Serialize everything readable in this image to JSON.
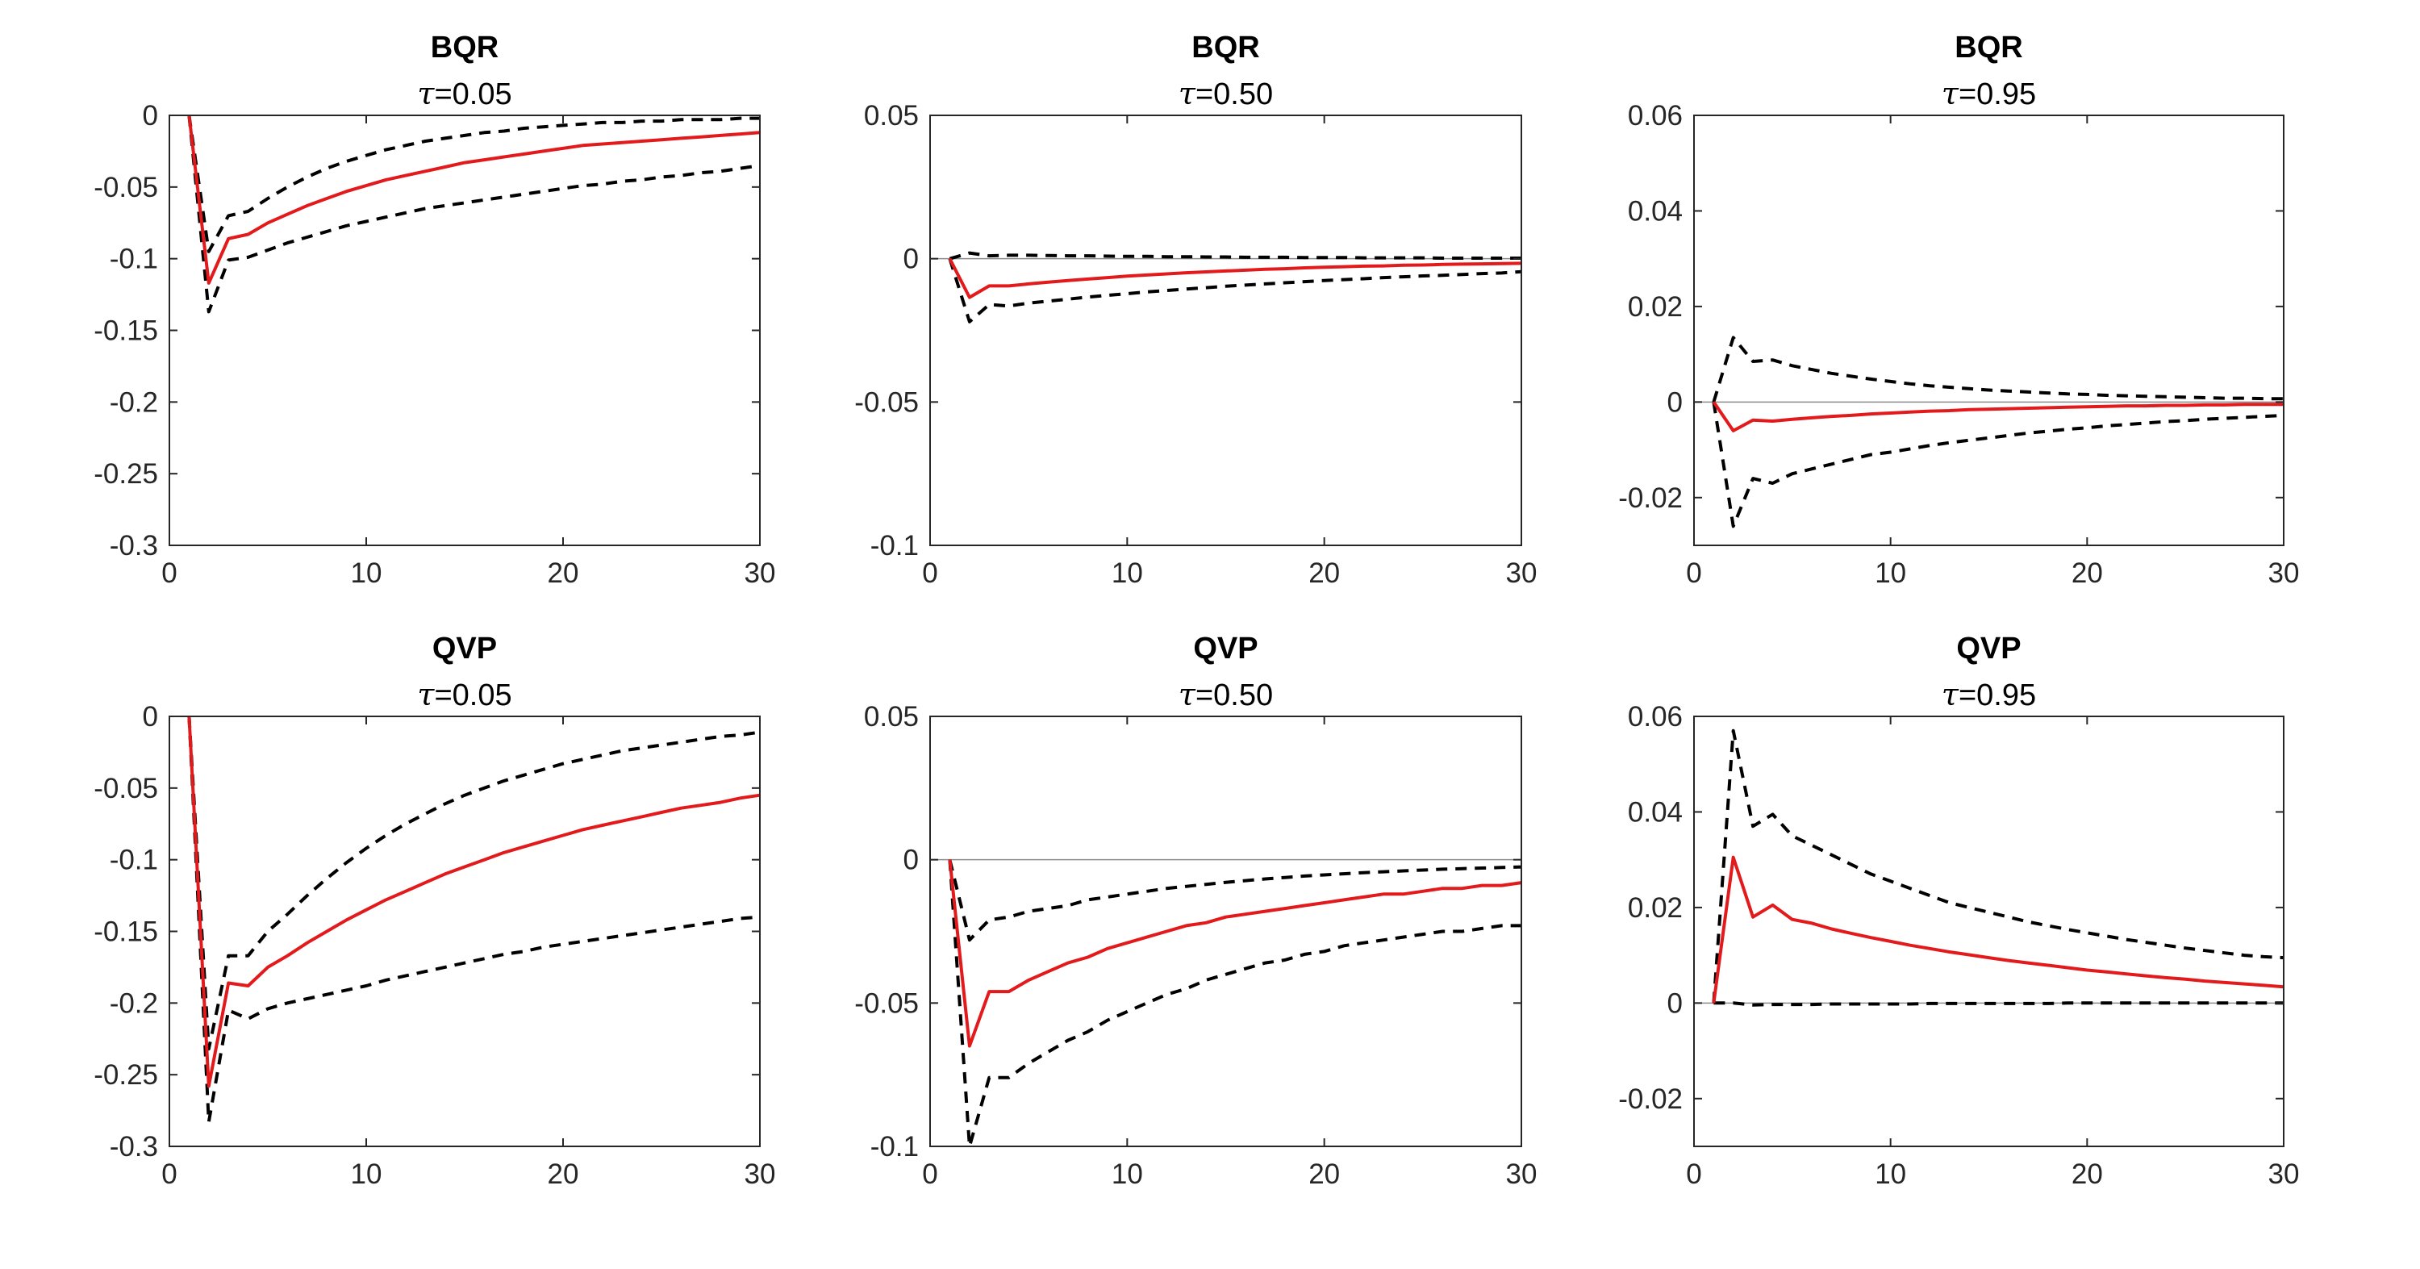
{
  "chart_data": [
    {
      "type": "line",
      "title": "BQR",
      "subtitle_prefix": "τ",
      "subtitle_value": "=0.05",
      "xlim": [
        0,
        30
      ],
      "ylim": [
        -0.3,
        0
      ],
      "xticks": [
        0,
        10,
        20,
        30
      ],
      "yticks": [
        -0.3,
        -0.25,
        -0.2,
        -0.15,
        -0.1,
        -0.05,
        0
      ],
      "ytick_labels": [
        "-0.3",
        "-0.25",
        "-0.2",
        "-0.15",
        "-0.1",
        "-0.05",
        "0"
      ],
      "zero_line": false,
      "x": [
        1,
        2,
        3,
        4,
        5,
        6,
        7,
        8,
        9,
        10,
        11,
        12,
        13,
        14,
        15,
        16,
        17,
        18,
        19,
        20,
        21,
        22,
        23,
        24,
        25,
        26,
        27,
        28,
        29,
        30
      ],
      "series": [
        {
          "role": "median",
          "values": [
            0,
            -0.117,
            -0.086,
            -0.083,
            -0.075,
            -0.069,
            -0.063,
            -0.058,
            -0.053,
            -0.049,
            -0.045,
            -0.042,
            -0.039,
            -0.036,
            -0.033,
            -0.031,
            -0.029,
            -0.027,
            -0.025,
            -0.023,
            -0.021,
            -0.02,
            -0.019,
            -0.018,
            -0.017,
            -0.016,
            -0.015,
            -0.014,
            -0.013,
            -0.012
          ]
        },
        {
          "role": "lower",
          "values": [
            0,
            -0.137,
            -0.101,
            -0.099,
            -0.094,
            -0.089,
            -0.085,
            -0.081,
            -0.077,
            -0.074,
            -0.071,
            -0.068,
            -0.065,
            -0.063,
            -0.061,
            -0.059,
            -0.057,
            -0.055,
            -0.053,
            -0.051,
            -0.049,
            -0.048,
            -0.046,
            -0.045,
            -0.043,
            -0.042,
            -0.04,
            -0.039,
            -0.037,
            -0.035
          ]
        },
        {
          "role": "upper",
          "values": [
            0,
            -0.095,
            -0.07,
            -0.067,
            -0.058,
            -0.05,
            -0.043,
            -0.037,
            -0.032,
            -0.028,
            -0.024,
            -0.021,
            -0.018,
            -0.016,
            -0.014,
            -0.012,
            -0.011,
            -0.009,
            -0.008,
            -0.007,
            -0.006,
            -0.005,
            -0.005,
            -0.004,
            -0.004,
            -0.003,
            -0.003,
            -0.003,
            -0.002,
            -0.002
          ]
        }
      ]
    },
    {
      "type": "line",
      "title": "BQR",
      "subtitle_prefix": "τ",
      "subtitle_value": "=0.50",
      "xlim": [
        0,
        30
      ],
      "ylim": [
        -0.1,
        0.05
      ],
      "xticks": [
        0,
        10,
        20,
        30
      ],
      "yticks": [
        -0.1,
        -0.05,
        0,
        0.05
      ],
      "ytick_labels": [
        "-0.1",
        "-0.05",
        "0",
        "0.05"
      ],
      "zero_line": true,
      "x": [
        1,
        2,
        3,
        4,
        5,
        6,
        7,
        8,
        9,
        10,
        11,
        12,
        13,
        14,
        15,
        16,
        17,
        18,
        19,
        20,
        21,
        22,
        23,
        24,
        25,
        26,
        27,
        28,
        29,
        30
      ],
      "series": [
        {
          "role": "median",
          "values": [
            0,
            -0.0135,
            -0.0095,
            -0.0095,
            -0.0088,
            -0.0082,
            -0.0076,
            -0.0071,
            -0.0066,
            -0.0061,
            -0.0057,
            -0.0053,
            -0.0049,
            -0.0046,
            -0.0043,
            -0.004,
            -0.0037,
            -0.0035,
            -0.0032,
            -0.003,
            -0.0028,
            -0.0026,
            -0.0025,
            -0.0023,
            -0.0022,
            -0.002,
            -0.0019,
            -0.0018,
            -0.0017,
            -0.0016
          ]
        },
        {
          "role": "lower",
          "values": [
            0,
            -0.022,
            -0.016,
            -0.0165,
            -0.0155,
            -0.0148,
            -0.0141,
            -0.0134,
            -0.0128,
            -0.0122,
            -0.0116,
            -0.0111,
            -0.0106,
            -0.0101,
            -0.0096,
            -0.0092,
            -0.0088,
            -0.0084,
            -0.008,
            -0.0076,
            -0.0073,
            -0.007,
            -0.0066,
            -0.0063,
            -0.006,
            -0.0058,
            -0.0055,
            -0.0052,
            -0.005,
            -0.0045
          ]
        },
        {
          "role": "upper",
          "values": [
            0,
            0.002,
            0.001,
            0.0012,
            0.0012,
            0.0011,
            0.001,
            0.001,
            0.0009,
            0.0008,
            0.0008,
            0.0007,
            0.0007,
            0.0006,
            0.0006,
            0.0005,
            0.0005,
            0.0005,
            0.0004,
            0.0004,
            0.0004,
            0.0003,
            0.0003,
            0.0003,
            0.0003,
            0.0002,
            0.0002,
            0.0002,
            0.0002,
            0.0002
          ]
        }
      ]
    },
    {
      "type": "line",
      "title": "BQR",
      "subtitle_prefix": "τ",
      "subtitle_value": "=0.95",
      "xlim": [
        0,
        30
      ],
      "ylim": [
        -0.03,
        0.06
      ],
      "xticks": [
        0,
        10,
        20,
        30
      ],
      "yticks": [
        -0.02,
        0,
        0.02,
        0.04,
        0.06
      ],
      "ytick_labels": [
        "-0.02",
        "0",
        "0.02",
        "0.04",
        "0.06"
      ],
      "zero_line": true,
      "x": [
        1,
        2,
        3,
        4,
        5,
        6,
        7,
        8,
        9,
        10,
        11,
        12,
        13,
        14,
        15,
        16,
        17,
        18,
        19,
        20,
        21,
        22,
        23,
        24,
        25,
        26,
        27,
        28,
        29,
        30
      ],
      "series": [
        {
          "role": "median",
          "values": [
            0,
            -0.006,
            -0.0038,
            -0.004,
            -0.0036,
            -0.0033,
            -0.003,
            -0.0028,
            -0.0025,
            -0.0023,
            -0.0021,
            -0.0019,
            -0.0018,
            -0.0016,
            -0.0015,
            -0.0014,
            -0.0013,
            -0.0012,
            -0.0011,
            -0.001,
            -0.0009,
            -0.0008,
            -0.0008,
            -0.0007,
            -0.0007,
            -0.0006,
            -0.0006,
            -0.0005,
            -0.0005,
            -0.0005
          ]
        },
        {
          "role": "lower",
          "values": [
            0,
            -0.026,
            -0.016,
            -0.017,
            -0.015,
            -0.014,
            -0.013,
            -0.012,
            -0.011,
            -0.0105,
            -0.0098,
            -0.0091,
            -0.0085,
            -0.008,
            -0.0075,
            -0.007,
            -0.0065,
            -0.0061,
            -0.0057,
            -0.0054,
            -0.005,
            -0.0047,
            -0.0044,
            -0.0041,
            -0.0039,
            -0.0036,
            -0.0034,
            -0.0032,
            -0.003,
            -0.0028
          ]
        },
        {
          "role": "upper",
          "values": [
            0,
            0.0135,
            0.0085,
            0.0088,
            0.0076,
            0.0068,
            0.006,
            0.0054,
            0.0048,
            0.0043,
            0.0038,
            0.0034,
            0.0031,
            0.0028,
            0.0025,
            0.0023,
            0.0021,
            0.0019,
            0.0017,
            0.0016,
            0.0014,
            0.0013,
            0.0012,
            0.0011,
            0.001,
            0.0009,
            0.0008,
            0.0008,
            0.0007,
            0.0007
          ]
        }
      ]
    },
    {
      "type": "line",
      "title": "QVP",
      "subtitle_prefix": "τ",
      "subtitle_value": "=0.05",
      "xlim": [
        0,
        30
      ],
      "ylim": [
        -0.3,
        0
      ],
      "xticks": [
        0,
        10,
        20,
        30
      ],
      "yticks": [
        -0.3,
        -0.25,
        -0.2,
        -0.15,
        -0.1,
        -0.05,
        0
      ],
      "ytick_labels": [
        "-0.3",
        "-0.25",
        "-0.2",
        "-0.15",
        "-0.1",
        "-0.05",
        "0"
      ],
      "zero_line": false,
      "x": [
        1,
        2,
        3,
        4,
        5,
        6,
        7,
        8,
        9,
        10,
        11,
        12,
        13,
        14,
        15,
        16,
        17,
        18,
        19,
        20,
        21,
        22,
        23,
        24,
        25,
        26,
        27,
        28,
        29,
        30
      ],
      "series": [
        {
          "role": "median",
          "values": [
            0,
            -0.258,
            -0.186,
            -0.188,
            -0.175,
            -0.167,
            -0.158,
            -0.15,
            -0.142,
            -0.135,
            -0.128,
            -0.122,
            -0.116,
            -0.11,
            -0.105,
            -0.1,
            -0.095,
            -0.091,
            -0.087,
            -0.083,
            -0.079,
            -0.076,
            -0.073,
            -0.07,
            -0.067,
            -0.064,
            -0.062,
            -0.06,
            -0.057,
            -0.055
          ]
        },
        {
          "role": "lower",
          "values": [
            0,
            -0.283,
            -0.205,
            -0.211,
            -0.204,
            -0.2,
            -0.197,
            -0.194,
            -0.191,
            -0.188,
            -0.184,
            -0.181,
            -0.178,
            -0.175,
            -0.172,
            -0.169,
            -0.166,
            -0.164,
            -0.161,
            -0.159,
            -0.157,
            -0.155,
            -0.153,
            -0.151,
            -0.149,
            -0.147,
            -0.145,
            -0.143,
            -0.141,
            -0.14
          ]
        },
        {
          "role": "upper",
          "values": [
            0,
            -0.232,
            -0.167,
            -0.167,
            -0.15,
            -0.138,
            -0.125,
            -0.113,
            -0.102,
            -0.092,
            -0.083,
            -0.075,
            -0.068,
            -0.061,
            -0.055,
            -0.05,
            -0.045,
            -0.041,
            -0.037,
            -0.033,
            -0.03,
            -0.027,
            -0.024,
            -0.022,
            -0.02,
            -0.018,
            -0.016,
            -0.014,
            -0.013,
            -0.011
          ]
        }
      ]
    },
    {
      "type": "line",
      "title": "QVP",
      "subtitle_prefix": "τ",
      "subtitle_value": "=0.50",
      "xlim": [
        0,
        30
      ],
      "ylim": [
        -0.1,
        0.05
      ],
      "xticks": [
        0,
        10,
        20,
        30
      ],
      "yticks": [
        -0.1,
        -0.05,
        0,
        0.05
      ],
      "ytick_labels": [
        "-0.1",
        "-0.05",
        "0",
        "0.05"
      ],
      "zero_line": true,
      "x": [
        1,
        2,
        3,
        4,
        5,
        6,
        7,
        8,
        9,
        10,
        11,
        12,
        13,
        14,
        15,
        16,
        17,
        18,
        19,
        20,
        21,
        22,
        23,
        24,
        25,
        26,
        27,
        28,
        29,
        30
      ],
      "series": [
        {
          "role": "median",
          "values": [
            0,
            -0.065,
            -0.046,
            -0.046,
            -0.042,
            -0.039,
            -0.036,
            -0.034,
            -0.031,
            -0.029,
            -0.027,
            -0.025,
            -0.023,
            -0.022,
            -0.02,
            -0.019,
            -0.018,
            -0.017,
            -0.016,
            -0.015,
            -0.014,
            -0.013,
            -0.012,
            -0.012,
            -0.011,
            -0.01,
            -0.01,
            -0.009,
            -0.009,
            -0.008
          ]
        },
        {
          "role": "lower",
          "values": [
            0,
            -0.1,
            -0.076,
            -0.076,
            -0.071,
            -0.067,
            -0.063,
            -0.06,
            -0.056,
            -0.053,
            -0.05,
            -0.047,
            -0.045,
            -0.042,
            -0.04,
            -0.038,
            -0.036,
            -0.035,
            -0.033,
            -0.032,
            -0.03,
            -0.029,
            -0.028,
            -0.027,
            -0.026,
            -0.025,
            -0.025,
            -0.024,
            -0.023,
            -0.023
          ]
        },
        {
          "role": "upper",
          "values": [
            0,
            -0.028,
            -0.021,
            -0.02,
            -0.018,
            -0.017,
            -0.016,
            -0.014,
            -0.013,
            -0.012,
            -0.011,
            -0.01,
            -0.0093,
            -0.0086,
            -0.0079,
            -0.0073,
            -0.0067,
            -0.0062,
            -0.0057,
            -0.0053,
            -0.0049,
            -0.0045,
            -0.0042,
            -0.0039,
            -0.0036,
            -0.0033,
            -0.0031,
            -0.0029,
            -0.0027,
            -0.0025
          ]
        }
      ]
    },
    {
      "type": "line",
      "title": "QVP",
      "subtitle_prefix": "τ",
      "subtitle_value": "=0.95",
      "xlim": [
        0,
        30
      ],
      "ylim": [
        -0.03,
        0.06
      ],
      "xticks": [
        0,
        10,
        20,
        30
      ],
      "yticks": [
        -0.02,
        0,
        0.02,
        0.04,
        0.06
      ],
      "ytick_labels": [
        "-0.02",
        "0",
        "0.02",
        "0.04",
        "0.06"
      ],
      "zero_line": true,
      "x": [
        1,
        2,
        3,
        4,
        5,
        6,
        7,
        8,
        9,
        10,
        11,
        12,
        13,
        14,
        15,
        16,
        17,
        18,
        19,
        20,
        21,
        22,
        23,
        24,
        25,
        26,
        27,
        28,
        29,
        30
      ],
      "series": [
        {
          "role": "median",
          "values": [
            0,
            0.0305,
            0.018,
            0.0205,
            0.0175,
            0.0167,
            0.0155,
            0.0146,
            0.0137,
            0.0129,
            0.0121,
            0.0114,
            0.0107,
            0.0101,
            0.0095,
            0.0089,
            0.0084,
            0.0079,
            0.0074,
            0.0069,
            0.0065,
            0.0061,
            0.0057,
            0.0053,
            0.005,
            0.0046,
            0.0043,
            0.004,
            0.0037,
            0.0034
          ]
        },
        {
          "role": "lower",
          "values": [
            0,
            0,
            -0.0004,
            -0.0003,
            -0.0003,
            -0.0003,
            -0.0002,
            -0.0002,
            -0.0002,
            -0.0002,
            -0.0002,
            -0.0001,
            -0.0001,
            -0.0001,
            -0.0001,
            -0.0001,
            -0.0001,
            -0.0001,
            0,
            0,
            0,
            0,
            0,
            0,
            0,
            0,
            0,
            0,
            0,
            0
          ]
        },
        {
          "role": "upper",
          "values": [
            0,
            0.057,
            0.037,
            0.0395,
            0.035,
            0.033,
            0.031,
            0.029,
            0.027,
            0.0255,
            0.024,
            0.0225,
            0.021,
            0.02,
            0.019,
            0.018,
            0.017,
            0.0162,
            0.0154,
            0.0147,
            0.014,
            0.0133,
            0.0127,
            0.0121,
            0.0115,
            0.011,
            0.0105,
            0.01,
            0.0097,
            0.0095
          ]
        }
      ]
    }
  ],
  "colors": {
    "median": "#e31a1c",
    "band": "#000000",
    "axis": "#262626",
    "zero_line": "#8c8c8c"
  }
}
